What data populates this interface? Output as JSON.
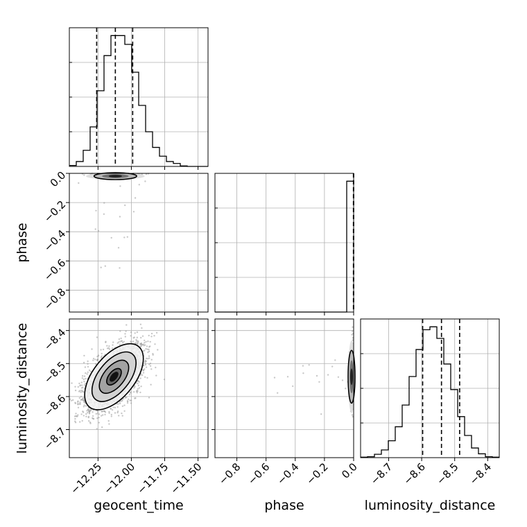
{
  "chart_data": {
    "type": "corner",
    "parameters": [
      "geocent_time",
      "phase",
      "luminosity_distance"
    ],
    "axis_labels": {
      "geocent_time": "geocent_time",
      "phase": "phase",
      "luminosity_distance": "luminosity_distance"
    },
    "ranges": {
      "geocent_time": [
        -12.465,
        -11.425
      ],
      "phase": [
        -0.95,
        0.0
      ],
      "luminosity_distance": [
        -8.785,
        -8.365
      ]
    },
    "ticks": {
      "geocent_time": [
        {
          "v": -12.25,
          "label": "−12.25"
        },
        {
          "v": -12.0,
          "label": "−12.00"
        },
        {
          "v": -11.75,
          "label": "−11.75"
        },
        {
          "v": -11.5,
          "label": "−11.50"
        }
      ],
      "phase": [
        {
          "v": -0.8,
          "label": "−0.8"
        },
        {
          "v": -0.6,
          "label": "−0.6"
        },
        {
          "v": -0.4,
          "label": "−0.4"
        },
        {
          "v": -0.2,
          "label": "−0.2"
        },
        {
          "v": 0.0,
          "label": "0.0"
        }
      ],
      "luminosity_distance": [
        {
          "v": -8.7,
          "label": "−8.7"
        },
        {
          "v": -8.6,
          "label": "−8.6"
        },
        {
          "v": -8.5,
          "label": "−8.5"
        },
        {
          "v": -8.4,
          "label": "−8.4"
        }
      ]
    },
    "histograms": {
      "geocent_time": {
        "bin_edges": [
          -12.465,
          -12.413,
          -12.361,
          -12.309,
          -12.257,
          -12.205,
          -12.153,
          -12.101,
          -12.049,
          -11.997,
          -11.945,
          -11.893,
          -11.841,
          -11.789,
          -11.737,
          -11.685,
          -11.633,
          -11.581,
          -11.529,
          -11.477,
          -11.425
        ],
        "counts": [
          2,
          10,
          33,
          81,
          155,
          227,
          268,
          268,
          250,
          193,
          125,
          71,
          39,
          21,
          10,
          6,
          1,
          0,
          0,
          0
        ],
        "quantiles": [
          -12.26,
          -12.12,
          -11.99
        ]
      },
      "phase": {
        "bin_edges": [
          -0.95,
          -0.9025,
          -0.855,
          -0.8075,
          -0.76,
          -0.7125,
          -0.665,
          -0.6175,
          -0.57,
          -0.5225,
          -0.475,
          -0.4275,
          -0.38,
          -0.3325,
          -0.285,
          -0.2375,
          -0.19,
          -0.1425,
          -0.095,
          -0.0475,
          0.0
        ],
        "counts": [
          0,
          0,
          0,
          0,
          0,
          0,
          0,
          0,
          0,
          0,
          0,
          0,
          0,
          0,
          0,
          0,
          0,
          0,
          0,
          1000
        ],
        "quantiles": [
          -0.0015,
          -0.0006,
          -0.0001
        ]
      },
      "luminosity_distance": {
        "bin_edges": [
          -8.785,
          -8.764,
          -8.743,
          -8.722,
          -8.701,
          -8.68,
          -8.659,
          -8.638,
          -8.617,
          -8.596,
          -8.575,
          -8.554,
          -8.533,
          -8.512,
          -8.491,
          -8.47,
          -8.449,
          -8.428,
          -8.407,
          -8.386,
          -8.365
        ],
        "counts": [
          1,
          2,
          7,
          16,
          35,
          64,
          109,
          168,
          224,
          265,
          271,
          247,
          194,
          141,
          85,
          46,
          20,
          8,
          2,
          1
        ],
        "quantiles": [
          -8.597,
          -8.54,
          -8.485
        ]
      }
    },
    "joint": {
      "geocent_time_vs_phase": {
        "center": [
          -12.12,
          -0.005
        ],
        "sd": [
          0.1,
          0.006
        ],
        "rho": 0,
        "outlier_fraction": 0.08
      },
      "geocent_time_vs_luminosity_distance": {
        "center": [
          -12.13,
          -8.54
        ],
        "sd": [
          0.11,
          0.05
        ],
        "rho": 0.55,
        "contour_levels_sigma": [
          0.5,
          1.0,
          1.5,
          2.0
        ]
      },
      "phase_vs_luminosity_distance": {
        "center": [
          -0.005,
          -8.54
        ],
        "sd": [
          0.006,
          0.05
        ],
        "rho": 0,
        "outlier_fraction": 0.08
      }
    }
  }
}
